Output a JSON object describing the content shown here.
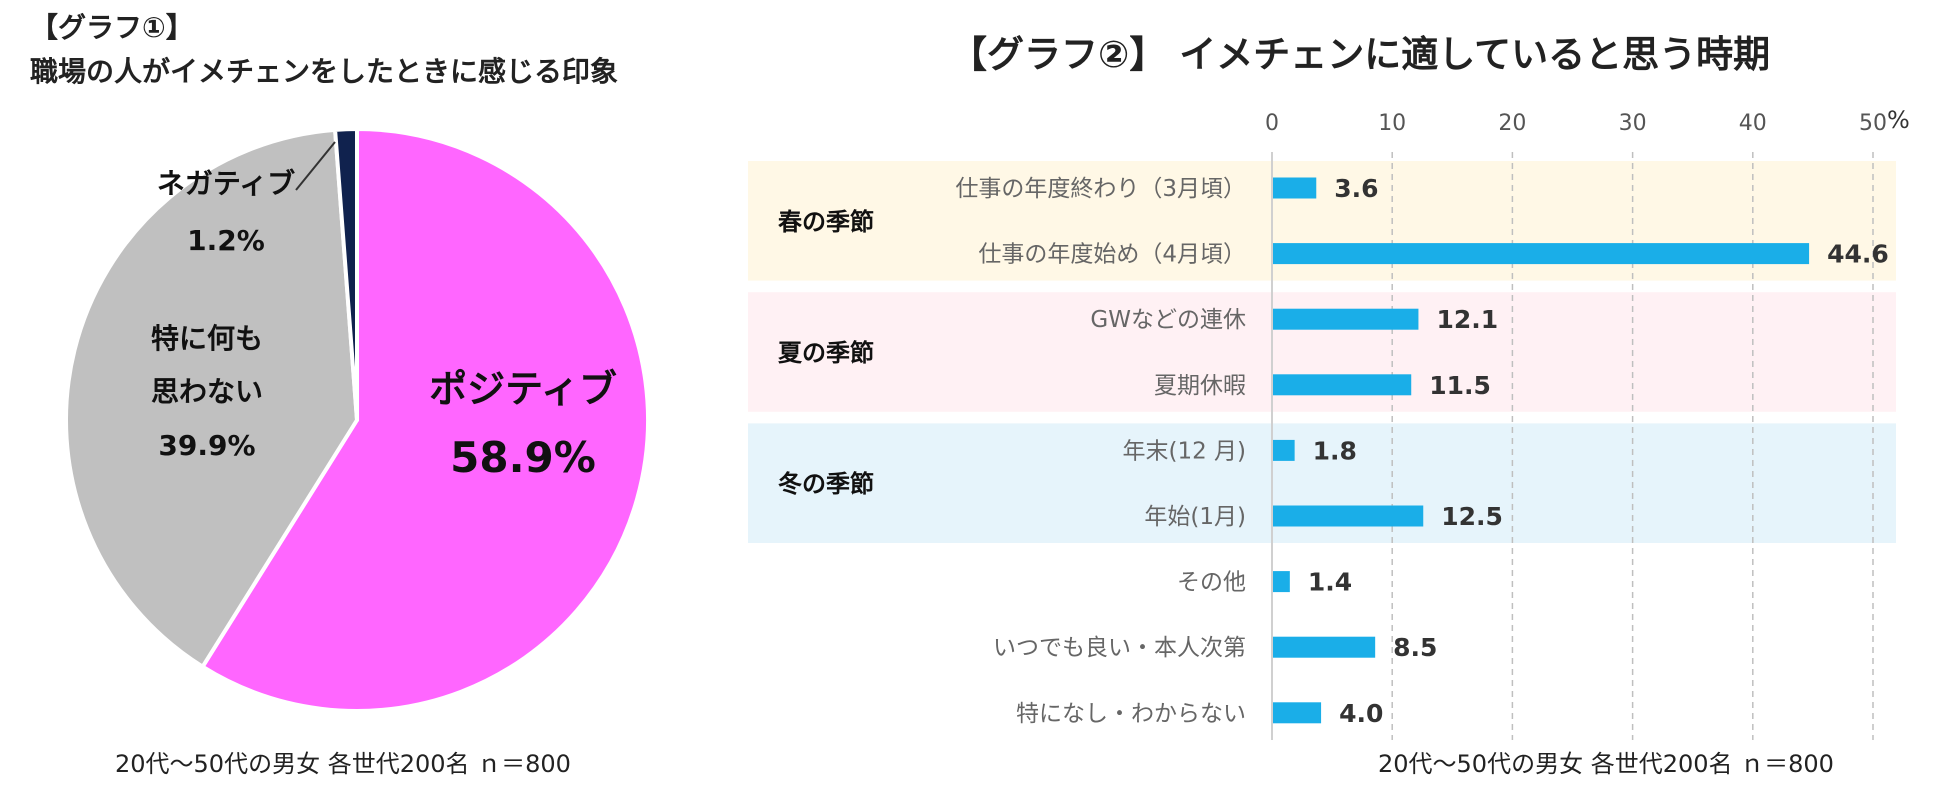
{
  "colors": {
    "positive": "#ff66ff",
    "nothing": "#c0c0c0",
    "negative": "#10224e",
    "bar": "#1aaee8",
    "spring_band": "#fff8e6",
    "summer_band": "#fff1f4",
    "winter_band": "#e6f4fb",
    "grid": "#bfbfbf"
  },
  "graph1": {
    "title_line1": "【グラフ①】",
    "title_line2": "職場の人がイメチェンをしたときに感じる印象",
    "note": "20代～50代の男女 各世代200名 ｎ＝800",
    "chart_data": {
      "type": "pie",
      "unit": "%",
      "slices": [
        {
          "label": "ポジティブ",
          "value": 58.9,
          "value_label": "58.9%",
          "color_key": "positive"
        },
        {
          "label_lines": [
            "特に何も",
            "思わない"
          ],
          "value": 39.9,
          "value_label": "39.9%",
          "color_key": "nothing"
        },
        {
          "label": "ネガティブ",
          "value": 1.2,
          "value_label": "1.2%",
          "color_key": "negative"
        }
      ]
    }
  },
  "graph2": {
    "title": "【グラフ②】 イメチェンに適していると思う時期",
    "note": "20代～50代の男女 各世代200名 ｎ＝800",
    "chart_data": {
      "type": "bar",
      "orientation": "horizontal",
      "unit": "%",
      "xlim": [
        0,
        50
      ],
      "ticks": [
        0,
        10,
        20,
        30,
        40,
        50
      ],
      "grid": true,
      "groups": [
        {
          "label": "春の季節",
          "band_key": "spring_band",
          "items": [
            0,
            1
          ]
        },
        {
          "label": "夏の季節",
          "band_key": "summer_band",
          "items": [
            2,
            3
          ]
        },
        {
          "label": "冬の季節",
          "band_key": "winter_band",
          "items": [
            4,
            5
          ]
        }
      ],
      "categories": [
        "仕事の年度終わり（3月頃）",
        "仕事の年度始め（4月頃）",
        "GWなどの連休",
        "夏期休暇",
        "年末(12 月)",
        "年始(1月)",
        "その他",
        "いつでも良い・本人次第",
        "特になし・わからない"
      ],
      "values": [
        3.6,
        44.6,
        12.1,
        11.5,
        1.8,
        12.5,
        1.4,
        8.5,
        4.0
      ],
      "value_labels": [
        "3.6",
        "44.6",
        "12.1",
        "11.5",
        "1.8",
        "12.5",
        "1.4",
        "8.5",
        "4.0"
      ]
    }
  }
}
